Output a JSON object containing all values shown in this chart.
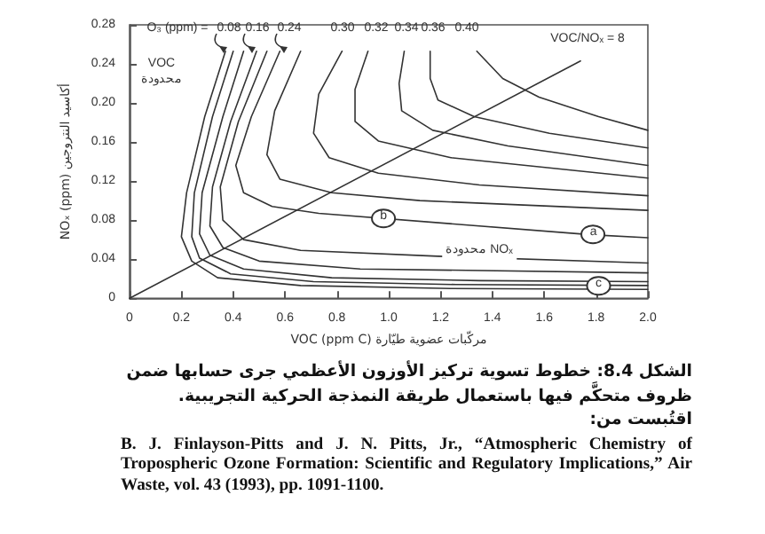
{
  "chart_data": {
    "type": "line",
    "xlabel": "VOC (ppm C) مركّبات عضوية طيّارة",
    "ylabel": "NOₓ (ppm) أكاسيد النتروجين",
    "xlim": [
      0,
      2
    ],
    "xticks": [
      0,
      0.2,
      0.4,
      0.6,
      0.8,
      {
        "value": 1,
        "label": "1.0"
      },
      1.2,
      1.4,
      1.6,
      1.8,
      {
        "value": 2,
        "label": "2.0"
      }
    ],
    "ylim": [
      0,
      0.28
    ],
    "yticks": [
      0,
      0.04,
      0.08,
      0.12,
      0.16,
      {
        "value": 0.2,
        "label": "0.20"
      },
      0.24,
      0.28
    ],
    "series": [
      {
        "color": "#333333",
        "x": [
          0.37,
          0.29,
          0.22,
          0.2,
          0.24,
          0.34,
          0.66,
          1.24,
          2.0
        ],
        "values": [
          0.253,
          0.186,
          0.108,
          0.063,
          0.038,
          0.021,
          0.013,
          0.01,
          0.009
        ]
      },
      {
        "color": "#333333",
        "x": [
          0.4,
          0.32,
          0.25,
          0.24,
          0.27,
          0.39,
          0.71,
          1.26,
          2.0
        ],
        "values": [
          0.253,
          0.186,
          0.108,
          0.063,
          0.041,
          0.025,
          0.017,
          0.014,
          0.013
        ]
      },
      {
        "color": "#333333",
        "x": [
          0.44,
          0.36,
          0.28,
          0.27,
          0.31,
          0.44,
          0.78,
          1.35,
          2.0
        ],
        "values": [
          0.253,
          0.186,
          0.108,
          0.066,
          0.044,
          0.03,
          0.021,
          0.018,
          0.017
        ]
      },
      {
        "color": "#333333",
        "x": [
          0.49,
          0.39,
          0.32,
          0.31,
          0.36,
          0.5,
          0.89,
          2.0
        ],
        "values": [
          0.253,
          0.181,
          0.114,
          0.074,
          0.052,
          0.038,
          0.03,
          0.026
        ]
      },
      {
        "color": "#333333",
        "x": [
          0.53,
          0.42,
          0.35,
          0.36,
          0.44,
          0.66,
          1.19,
          2.0
        ],
        "values": [
          0.253,
          0.181,
          0.114,
          0.08,
          0.06,
          0.049,
          0.043,
          0.036
        ]
      },
      {
        "color": "#333333",
        "x": [
          0.58,
          0.47,
          0.41,
          0.44,
          0.55,
          0.73,
          1.78,
          2.0
        ],
        "values": [
          0.253,
          0.186,
          0.136,
          0.108,
          0.094,
          0.087,
          0.065,
          0.062
        ]
      },
      {
        "color": "#333333",
        "x": [
          0.66,
          0.56,
          0.53,
          0.58,
          0.78,
          1.12,
          2.0
        ],
        "values": [
          0.253,
          0.192,
          0.147,
          0.122,
          0.108,
          0.1,
          0.09
        ]
      },
      {
        "color": "#333333",
        "x": [
          0.82,
          0.73,
          0.71,
          0.77,
          0.96,
          1.35,
          2.0
        ],
        "values": [
          0.253,
          0.209,
          0.169,
          0.144,
          0.128,
          0.116,
          0.105
        ]
      },
      {
        "color": "#333333",
        "x": [
          0.92,
          0.87,
          0.87,
          0.96,
          1.24,
          2.0
        ],
        "values": [
          0.253,
          0.214,
          0.181,
          0.161,
          0.144,
          0.123
        ]
      },
      {
        "color": "#333333",
        "x": [
          1.06,
          1.04,
          1.05,
          1.17,
          1.46,
          2.0
        ],
        "values": [
          0.253,
          0.22,
          0.192,
          0.172,
          0.156,
          0.136
        ]
      },
      {
        "color": "#333333",
        "x": [
          1.16,
          1.16,
          1.19,
          1.33,
          1.62,
          2.0
        ],
        "values": [
          0.253,
          0.225,
          0.203,
          0.186,
          0.169,
          0.154
        ]
      },
      {
        "color": "#333333",
        "x": [
          1.34,
          1.44,
          1.58,
          1.81,
          2.0
        ],
        "values": [
          0.253,
          0.225,
          0.206,
          0.186,
          0.172
        ]
      },
      {
        "color": "#333333",
        "x": [
          0,
          1.74
        ],
        "values": [
          0,
          0.243
        ]
      }
    ],
    "annotations": [
      "O₃ (ppm) =",
      "0.08",
      "0.16",
      "0.24",
      "0.30",
      "0.32",
      "0.34",
      "0.36",
      "0.40",
      "VOC/NOₓ = 8",
      "VOC\nمحدودة",
      "محدودة NOₓ",
      {
        "text": "a",
        "x": 1.79,
        "y": 0.065
      },
      {
        "text": "b",
        "x": 0.98,
        "y": 0.082
      },
      {
        "text": "c",
        "x": 1.81,
        "y": 0.012
      },
      "الشكل 8.4: خطوط تسوية تركيز الأوزون الأعظمي جرى حسابها ضمن ظروف متحكَّم فيها باستعمال طريقة النمذجة الحركية التجريبية. اقتُبست من:",
      "B. J. Finlayson-Pitts and J. N. Pitts, Jr., “Atmospheric Chemistry of Tropospheric Ozone Formation: Scientific and Regulatory Implications,” Air Waste, vol. 43 (1993), pp. 1091-1100."
    ]
  }
}
